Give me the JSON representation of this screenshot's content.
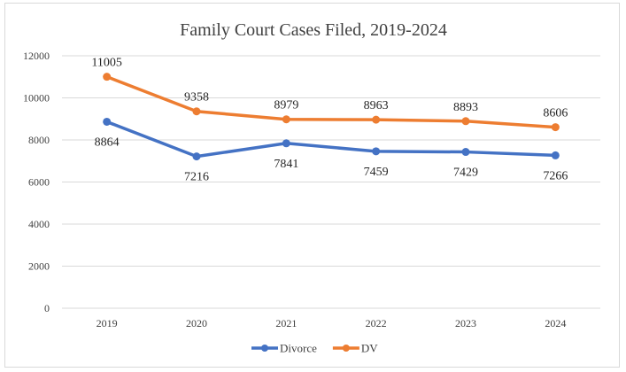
{
  "chart_data": {
    "type": "line",
    "title": "Family Court Cases Filed, 2019-2024",
    "xlabel": "",
    "ylabel": "",
    "categories": [
      "2019",
      "2020",
      "2021",
      "2022",
      "2023",
      "2024"
    ],
    "ylim": [
      0,
      12000
    ],
    "yticks": [
      0,
      2000,
      4000,
      6000,
      8000,
      10000,
      12000
    ],
    "grid": true,
    "legend_position": "bottom",
    "series": [
      {
        "name": "Divorce",
        "color": "#4472C4",
        "values": [
          8864,
          7216,
          7841,
          7459,
          7429,
          7266
        ],
        "label_position": "below"
      },
      {
        "name": "DV",
        "color": "#ED7D31",
        "values": [
          11005,
          9358,
          8979,
          8963,
          8893,
          8606
        ],
        "label_position": "above"
      }
    ]
  }
}
